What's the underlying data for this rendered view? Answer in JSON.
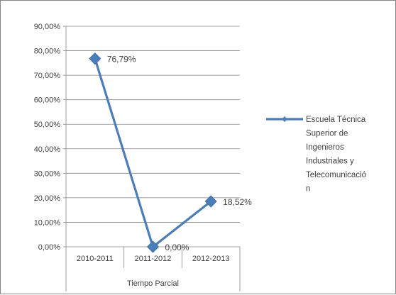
{
  "chart_data": {
    "type": "line",
    "categories": [
      "2010-2011",
      "2011-2012",
      "2012-2013"
    ],
    "group_label": "Tiempo Parcial",
    "ylim": [
      0,
      90
    ],
    "yticks": [
      "0,00%",
      "10,00%",
      "20,00%",
      "30,00%",
      "40,00%",
      "50,00%",
      "60,00%",
      "70,00%",
      "80,00%",
      "90,00%"
    ],
    "series": [
      {
        "name": "Escuela Técnica Superior de Ingenieros Industriales y Telecomunicación",
        "name_lines": [
          "Escuela Técnica",
          "Superior de",
          "Ingenieros",
          "Industriales y",
          "Telecomunicació",
          "n"
        ],
        "values": [
          76.79,
          0.0,
          18.52
        ],
        "data_labels": [
          "76,79%",
          "0,00%",
          "18,52%"
        ],
        "color": "#4a7ebb"
      }
    ],
    "grid": true,
    "legend_position": "right"
  }
}
